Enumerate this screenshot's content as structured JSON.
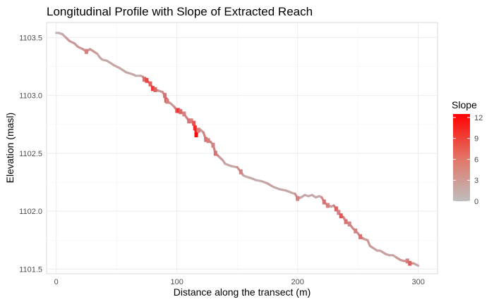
{
  "chart_data": {
    "type": "line",
    "title": "Longitudinal Profile with Slope of Extracted Reach",
    "xlabel": "Distance along the transect (m)",
    "ylabel": "Elevation (masl)",
    "xlim": [
      -8,
      316
    ],
    "ylim": [
      1101.46,
      1103.63
    ],
    "x_ticks": [
      0,
      100,
      200,
      300
    ],
    "y_ticks": [
      1101.5,
      1102.0,
      1102.5,
      1103.0,
      1103.5
    ],
    "x_tick_labels": [
      "0",
      "100",
      "200",
      "300"
    ],
    "y_tick_labels": [
      "1101.5",
      "1102.0",
      "1102.5",
      "1103.0",
      "1103.5"
    ],
    "grid": true,
    "legend": {
      "title": "Slope",
      "placement": "right",
      "color_low": "#bebebe",
      "color_high": "#ff0000",
      "range": [
        0,
        12.5
      ],
      "ticks": [
        0,
        3,
        6,
        9,
        12
      ],
      "tick_labels": [
        "0",
        "3",
        "6",
        "9",
        "12"
      ]
    },
    "series": [
      {
        "x": [
          0,
          2,
          5,
          8,
          11,
          15,
          18,
          22,
          25,
          28,
          31,
          34,
          36,
          38,
          42,
          45,
          48,
          52,
          55,
          58,
          61,
          64,
          66,
          70,
          72,
          73,
          75,
          78,
          80,
          82,
          85,
          88,
          90,
          91,
          92,
          95,
          98,
          100,
          101,
          103,
          106,
          108,
          110,
          112,
          114,
          115,
          116,
          118,
          120,
          122,
          124,
          126,
          128,
          130,
          132,
          135,
          138,
          140,
          145,
          150,
          153,
          155,
          157,
          160,
          163,
          165,
          170,
          175,
          180,
          185,
          190,
          195,
          198,
          200,
          203,
          206,
          209,
          212,
          215,
          218,
          220,
          222,
          225,
          228,
          230,
          232,
          234,
          236,
          238,
          240,
          243,
          246,
          248,
          250,
          252,
          255,
          258,
          260,
          263,
          266,
          268,
          270,
          273,
          276,
          279,
          282,
          285,
          288,
          291,
          293,
          296,
          298,
          300
        ],
        "y": [
          1103.54,
          1103.54,
          1103.53,
          1103.5,
          1103.47,
          1103.45,
          1103.42,
          1103.4,
          1103.38,
          1103.4,
          1103.38,
          1103.36,
          1103.33,
          1103.31,
          1103.3,
          1103.28,
          1103.26,
          1103.24,
          1103.22,
          1103.2,
          1103.19,
          1103.18,
          1103.17,
          1103.17,
          1103.16,
          1103.14,
          1103.13,
          1103.1,
          1103.06,
          1103.05,
          1103.04,
          1103.03,
          1103.0,
          1102.96,
          1102.95,
          1102.93,
          1102.9,
          1102.87,
          1102.87,
          1102.86,
          1102.84,
          1102.81,
          1102.78,
          1102.78,
          1102.76,
          1102.72,
          1102.66,
          1102.7,
          1102.7,
          1102.68,
          1102.62,
          1102.61,
          1102.6,
          1102.57,
          1102.5,
          1102.47,
          1102.44,
          1102.41,
          1102.39,
          1102.38,
          1102.34,
          1102.31,
          1102.3,
          1102.29,
          1102.28,
          1102.27,
          1102.26,
          1102.24,
          1102.21,
          1102.19,
          1102.18,
          1102.16,
          1102.15,
          1102.11,
          1102.12,
          1102.14,
          1102.13,
          1102.14,
          1102.12,
          1102.13,
          1102.12,
          1102.08,
          1102.05,
          1102.04,
          1102.05,
          1102.02,
          1101.99,
          1101.96,
          1101.95,
          1101.91,
          1101.89,
          1101.85,
          1101.83,
          1101.81,
          1101.78,
          1101.76,
          1101.75,
          1101.7,
          1101.68,
          1101.66,
          1101.66,
          1101.65,
          1101.63,
          1101.62,
          1101.62,
          1101.6,
          1101.58,
          1101.57,
          1101.57,
          1101.55,
          1101.55,
          1101.54,
          1101.53
        ],
        "slope": [
          0.5,
          0.5,
          1,
          2,
          3,
          2,
          3,
          2,
          4,
          2,
          3,
          2,
          1,
          2,
          1,
          2,
          1,
          2,
          1,
          2,
          1,
          2,
          1,
          1,
          2,
          5,
          8,
          6,
          9,
          6,
          3,
          2,
          5,
          7,
          4,
          2,
          3,
          5,
          9,
          6,
          4,
          3,
          5,
          4,
          7,
          10,
          12,
          4,
          2,
          3,
          5,
          4,
          3,
          4,
          5,
          3,
          2,
          2,
          1,
          2,
          4,
          2,
          1,
          1,
          2,
          1,
          1,
          2,
          2,
          1,
          2,
          1,
          2,
          4,
          2,
          1,
          2,
          1,
          2,
          1,
          2,
          5,
          4,
          2,
          2,
          6,
          4,
          7,
          3,
          5,
          4,
          3,
          4,
          2,
          5,
          3,
          2,
          3,
          2,
          2,
          1,
          2,
          2,
          2,
          1,
          2,
          3,
          2,
          4,
          6,
          3,
          2,
          1
        ]
      }
    ]
  }
}
